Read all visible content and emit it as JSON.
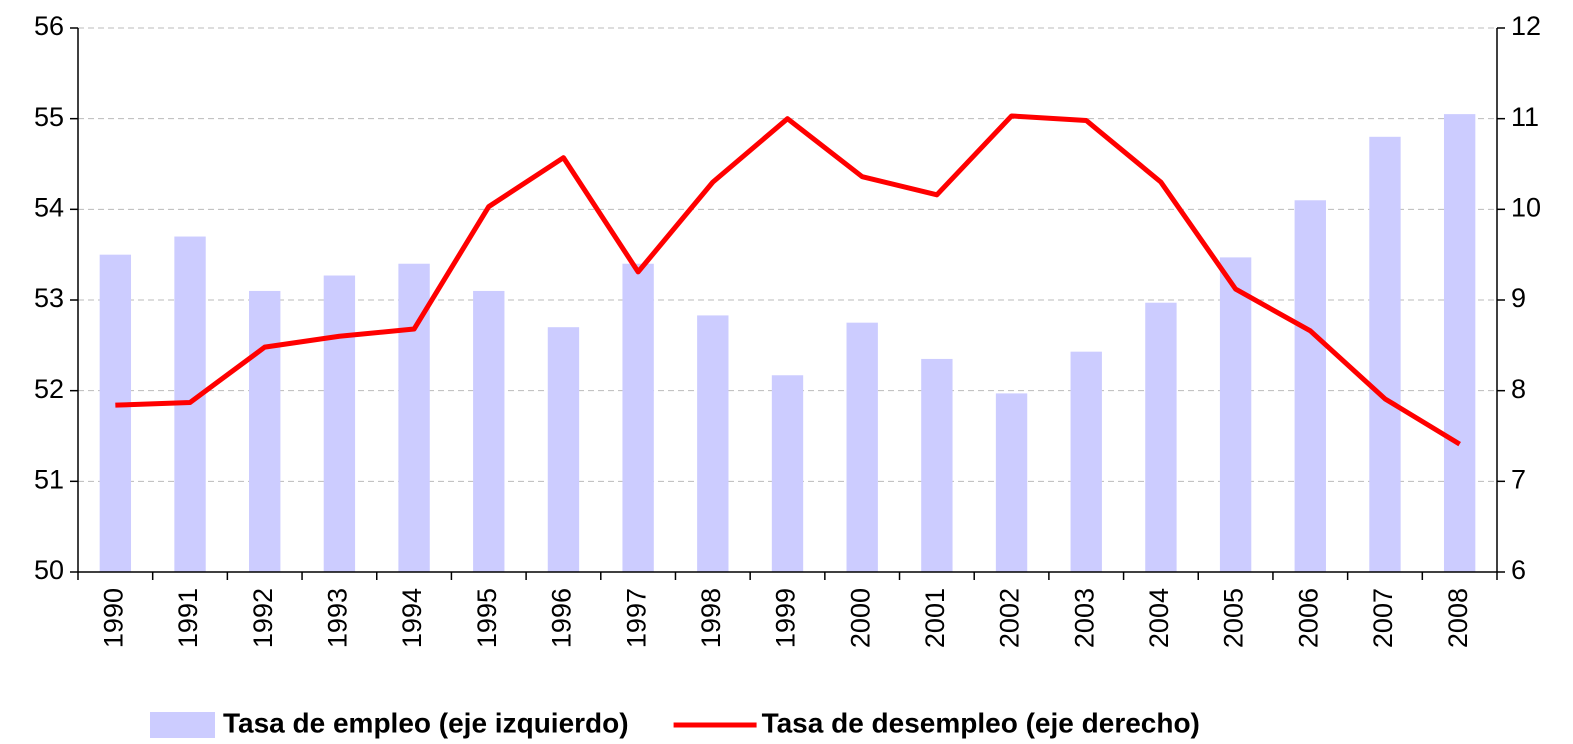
{
  "chart_data": {
    "type": "bar",
    "categories": [
      "1990",
      "1991",
      "1992",
      "1993",
      "1994",
      "1995",
      "1996",
      "1997",
      "1998",
      "1999",
      "2000",
      "2001",
      "2002",
      "2003",
      "2004",
      "2005",
      "2006",
      "2007",
      "2008"
    ],
    "series": [
      {
        "name": "Tasa de empleo (eje izquierdo)",
        "type": "bar",
        "color": "#ccccff",
        "values": [
          53.5,
          53.7,
          53.1,
          53.27,
          53.4,
          53.1,
          52.7,
          53.4,
          52.83,
          52.17,
          52.75,
          52.35,
          51.97,
          52.43,
          52.97,
          53.47,
          54.1,
          54.8,
          55.05
        ]
      },
      {
        "name": "Tasa de desempleo (eje derecho)",
        "type": "line",
        "axis": "y2",
        "color": "#ff0000",
        "values": [
          7.84,
          7.87,
          8.48,
          8.6,
          8.68,
          10.03,
          10.57,
          9.31,
          10.3,
          11.0,
          10.36,
          10.16,
          11.03,
          10.98,
          10.3,
          9.12,
          8.66,
          7.91,
          7.41
        ]
      }
    ],
    "ylim": [
      50,
      56
    ],
    "yticks": [
      50,
      51,
      52,
      53,
      54,
      55,
      56
    ],
    "y2lim": [
      6,
      12
    ],
    "y2ticks": [
      6,
      7,
      8,
      9,
      10,
      11,
      12
    ],
    "grid": true,
    "legend": "bottom"
  }
}
